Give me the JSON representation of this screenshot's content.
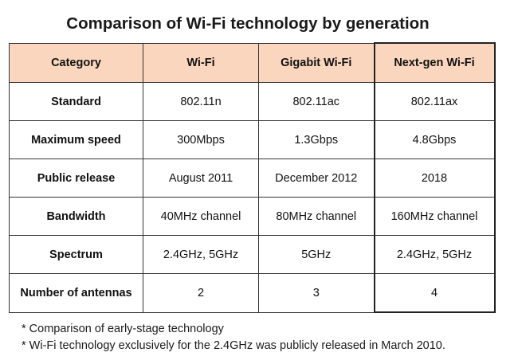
{
  "title": "Comparison of Wi-Fi technology by generation",
  "colors": {
    "header_background": "#fbd6be",
    "border": "#333333"
  },
  "table": {
    "headers": [
      "Category",
      "Wi-Fi",
      "Gigabit Wi-Fi",
      "Next-gen Wi-Fi"
    ],
    "rows": [
      [
        "Standard",
        "802.11n",
        "802.11ac",
        "802.11ax"
      ],
      [
        "Maximum speed",
        "300Mbps",
        "1.3Gbps",
        "4.8Gbps"
      ],
      [
        "Public release",
        "August 2011",
        "December 2012",
        "2018"
      ],
      [
        "Bandwidth",
        "40MHz channel",
        "80MHz channel",
        "160MHz channel"
      ],
      [
        "Spectrum",
        "2.4GHz, 5GHz",
        "5GHz",
        "2.4GHz, 5GHz"
      ],
      [
        "Number of antennas",
        "2",
        "3",
        "4"
      ]
    ]
  },
  "notes": [
    "* Comparison of early-stage technology",
    "* Wi-Fi technology exclusively for the 2.4GHz was publicly released in March 2010."
  ]
}
